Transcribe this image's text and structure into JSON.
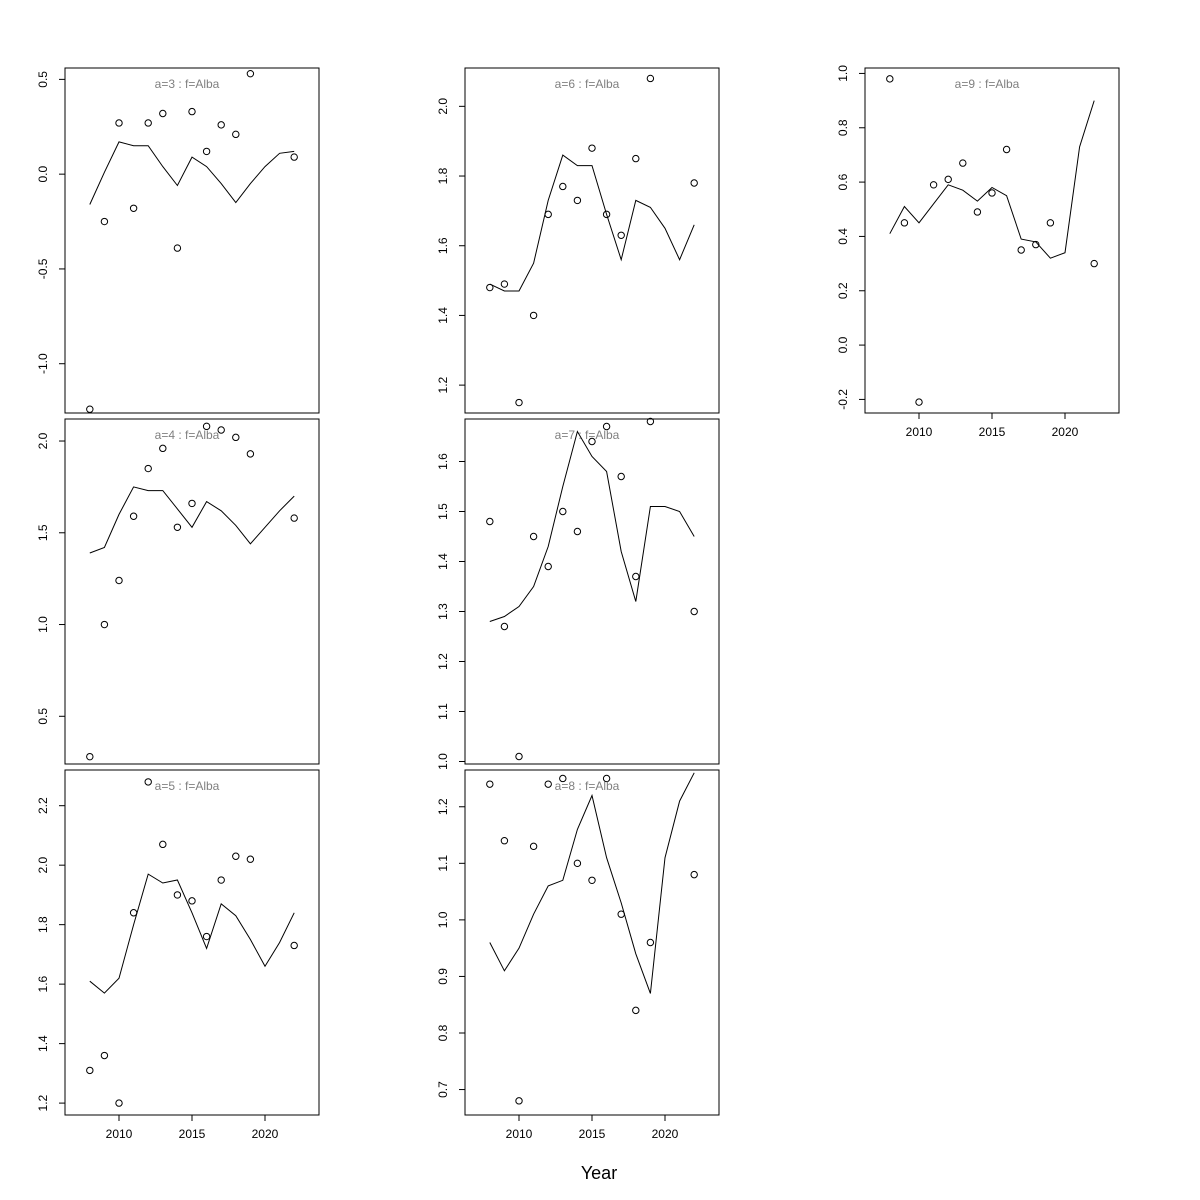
{
  "figure": {
    "xlabel": "Year"
  },
  "chart_data": [
    {
      "type": "scatter",
      "title": "a=3  :  f=Alba",
      "xlim": [
        2006.3,
        2023.7
      ],
      "ylim": [
        -1.26,
        0.56
      ],
      "yticks": [
        -1.0,
        -0.5,
        0.0,
        0.5
      ],
      "ytick_labels": [
        "-1.0",
        "-0.5",
        "0.0",
        "0.5"
      ],
      "xticks": [],
      "xtick_labels": [],
      "points": {
        "x": [
          2008,
          2009,
          2010,
          2011,
          2012,
          2013,
          2014,
          2015,
          2016,
          2017,
          2018,
          2019,
          2022
        ],
        "y": [
          -1.24,
          -0.25,
          0.27,
          -0.18,
          0.27,
          0.32,
          -0.39,
          0.33,
          0.12,
          0.26,
          0.21,
          0.53,
          0.09
        ]
      },
      "line": {
        "x": [
          2008,
          2009,
          2010,
          2011,
          2012,
          2013,
          2014,
          2015,
          2016,
          2017,
          2018,
          2019,
          2020,
          2021,
          2022
        ],
        "y": [
          -0.16,
          0.01,
          0.17,
          0.15,
          0.15,
          0.04,
          -0.06,
          0.09,
          0.04,
          -0.05,
          -0.15,
          -0.05,
          0.04,
          0.11,
          0.12
        ]
      }
    },
    {
      "type": "scatter",
      "title": "a=4  :  f=Alba",
      "xlim": [
        2006.3,
        2023.7
      ],
      "ylim": [
        0.24,
        2.12
      ],
      "yticks": [
        0.5,
        1.0,
        1.5,
        2.0
      ],
      "ytick_labels": [
        "0.5",
        "1.0",
        "1.5",
        "2.0"
      ],
      "xticks": [],
      "xtick_labels": [],
      "points": {
        "x": [
          2008,
          2009,
          2010,
          2011,
          2012,
          2013,
          2014,
          2015,
          2016,
          2017,
          2018,
          2019,
          2022
        ],
        "y": [
          0.28,
          1.0,
          1.24,
          1.59,
          1.85,
          1.96,
          1.53,
          1.66,
          2.08,
          2.06,
          2.02,
          1.93,
          1.58
        ]
      },
      "line": {
        "x": [
          2008,
          2009,
          2010,
          2011,
          2012,
          2013,
          2014,
          2015,
          2016,
          2017,
          2018,
          2019,
          2020,
          2021,
          2022
        ],
        "y": [
          1.39,
          1.42,
          1.6,
          1.75,
          1.73,
          1.73,
          1.63,
          1.53,
          1.67,
          1.62,
          1.54,
          1.44,
          1.53,
          1.62,
          1.7
        ]
      }
    },
    {
      "type": "scatter",
      "title": "a=5  :  f=Alba",
      "xlim": [
        2006.3,
        2023.7
      ],
      "ylim": [
        1.16,
        2.32
      ],
      "yticks": [
        1.2,
        1.4,
        1.6,
        1.8,
        2.0,
        2.2
      ],
      "ytick_labels": [
        "1.2",
        "1.4",
        "1.6",
        "1.8",
        "2.0",
        "2.2"
      ],
      "xticks": [
        2010,
        2015,
        2020
      ],
      "xtick_labels": [
        "2010",
        "2015",
        "2020"
      ],
      "points": {
        "x": [
          2008,
          2009,
          2010,
          2011,
          2012,
          2013,
          2014,
          2015,
          2016,
          2017,
          2018,
          2019,
          2022
        ],
        "y": [
          1.31,
          1.36,
          1.2,
          1.84,
          2.28,
          2.07,
          1.9,
          1.88,
          1.76,
          1.95,
          2.03,
          2.02,
          1.73
        ]
      },
      "line": {
        "x": [
          2008,
          2009,
          2010,
          2011,
          2012,
          2013,
          2014,
          2015,
          2016,
          2017,
          2018,
          2019,
          2020,
          2021,
          2022
        ],
        "y": [
          1.61,
          1.57,
          1.62,
          1.8,
          1.97,
          1.94,
          1.95,
          1.84,
          1.72,
          1.87,
          1.83,
          1.75,
          1.66,
          1.74,
          1.84
        ]
      }
    },
    {
      "type": "scatter",
      "title": "a=6  :  f=Alba",
      "xlim": [
        2006.3,
        2023.7
      ],
      "ylim": [
        1.12,
        2.11
      ],
      "yticks": [
        1.2,
        1.4,
        1.6,
        1.8,
        2.0
      ],
      "ytick_labels": [
        "1.2",
        "1.4",
        "1.6",
        "1.8",
        "2.0"
      ],
      "xticks": [],
      "xtick_labels": [],
      "points": {
        "x": [
          2008,
          2009,
          2010,
          2011,
          2012,
          2013,
          2014,
          2015,
          2016,
          2017,
          2018,
          2019,
          2022
        ],
        "y": [
          1.48,
          1.49,
          1.15,
          1.4,
          1.69,
          1.77,
          1.73,
          1.88,
          1.69,
          1.63,
          1.85,
          2.08,
          1.78
        ]
      },
      "line": {
        "x": [
          2008,
          2009,
          2010,
          2011,
          2012,
          2013,
          2014,
          2015,
          2016,
          2017,
          2018,
          2019,
          2020,
          2021,
          2022
        ],
        "y": [
          1.49,
          1.47,
          1.47,
          1.55,
          1.73,
          1.86,
          1.83,
          1.83,
          1.69,
          1.56,
          1.73,
          1.71,
          1.65,
          1.56,
          1.66
        ]
      }
    },
    {
      "type": "scatter",
      "title": "a=7  :  f=Alba",
      "xlim": [
        2006.3,
        2023.7
      ],
      "ylim": [
        0.995,
        1.685
      ],
      "yticks": [
        1.0,
        1.1,
        1.2,
        1.3,
        1.4,
        1.5,
        1.6
      ],
      "ytick_labels": [
        "1.0",
        "1.1",
        "1.2",
        "1.3",
        "1.4",
        "1.5",
        "1.6"
      ],
      "xticks": [],
      "xtick_labels": [],
      "points": {
        "x": [
          2008,
          2009,
          2010,
          2011,
          2012,
          2013,
          2014,
          2015,
          2016,
          2017,
          2018,
          2019,
          2022
        ],
        "y": [
          1.48,
          1.27,
          1.01,
          1.45,
          1.39,
          1.5,
          1.46,
          1.64,
          1.67,
          1.57,
          1.37,
          1.68,
          1.3
        ]
      },
      "line": {
        "x": [
          2008,
          2009,
          2010,
          2011,
          2012,
          2013,
          2014,
          2015,
          2016,
          2017,
          2018,
          2019,
          2020,
          2021,
          2022
        ],
        "y": [
          1.28,
          1.29,
          1.31,
          1.35,
          1.43,
          1.55,
          1.66,
          1.61,
          1.58,
          1.42,
          1.32,
          1.51,
          1.51,
          1.5,
          1.45
        ]
      }
    },
    {
      "type": "scatter",
      "title": "a=8  :  f=Alba",
      "xlim": [
        2006.3,
        2023.7
      ],
      "ylim": [
        0.655,
        1.265
      ],
      "yticks": [
        0.7,
        0.8,
        0.9,
        1.0,
        1.1,
        1.2
      ],
      "ytick_labels": [
        "0.7",
        "0.8",
        "0.9",
        "1.0",
        "1.1",
        "1.2"
      ],
      "xticks": [
        2010,
        2015,
        2020
      ],
      "xtick_labels": [
        "2010",
        "2015",
        "2020"
      ],
      "points": {
        "x": [
          2008,
          2009,
          2010,
          2011,
          2012,
          2013,
          2014,
          2015,
          2016,
          2017,
          2018,
          2019,
          2022
        ],
        "y": [
          1.24,
          1.14,
          0.68,
          1.13,
          1.24,
          1.25,
          1.1,
          1.07,
          1.25,
          1.01,
          0.84,
          0.96,
          1.08
        ]
      },
      "line": {
        "x": [
          2008,
          2009,
          2010,
          2011,
          2012,
          2013,
          2014,
          2015,
          2016,
          2017,
          2018,
          2019,
          2020,
          2021,
          2022
        ],
        "y": [
          0.96,
          0.91,
          0.95,
          1.01,
          1.06,
          1.07,
          1.16,
          1.22,
          1.11,
          1.03,
          0.94,
          0.87,
          1.11,
          1.21,
          1.26
        ]
      }
    },
    {
      "type": "scatter",
      "title": "a=9  :  f=Alba",
      "xlim": [
        2006.3,
        2023.7
      ],
      "ylim": [
        -0.25,
        1.02
      ],
      "yticks": [
        -0.2,
        0.0,
        0.2,
        0.4,
        0.6,
        0.8,
        1.0
      ],
      "ytick_labels": [
        "-0.2",
        "0.0",
        "0.2",
        "0.4",
        "0.6",
        "0.8",
        "1.0"
      ],
      "xticks": [
        2010,
        2015,
        2020
      ],
      "xtick_labels": [
        "2010",
        "2015",
        "2020"
      ],
      "points": {
        "x": [
          2008,
          2009,
          2010,
          2011,
          2012,
          2013,
          2014,
          2015,
          2016,
          2017,
          2018,
          2019,
          2022
        ],
        "y": [
          0.98,
          0.45,
          -0.21,
          0.59,
          0.61,
          0.67,
          0.49,
          0.56,
          0.72,
          0.35,
          0.37,
          0.45,
          0.3
        ]
      },
      "line": {
        "x": [
          2008,
          2009,
          2010,
          2011,
          2012,
          2013,
          2014,
          2015,
          2016,
          2017,
          2018,
          2019,
          2020,
          2021,
          2022
        ],
        "y": [
          0.41,
          0.51,
          0.45,
          0.52,
          0.59,
          0.57,
          0.53,
          0.58,
          0.55,
          0.39,
          0.38,
          0.32,
          0.34,
          0.73,
          0.9
        ]
      }
    }
  ]
}
